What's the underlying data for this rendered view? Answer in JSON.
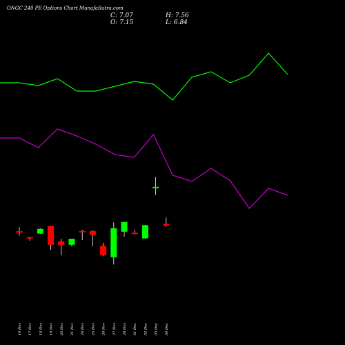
{
  "header": {
    "title": "ONGC 240 PE Options Chart MunafaSutra.com",
    "close": "C: 7.07",
    "high": "H: 7.56",
    "open": "O: 7.15",
    "low": "L: 6.84"
  },
  "colors": {
    "background": "#000000",
    "up": "#00ff00",
    "down": "#ff0000",
    "line_top": "#00ff00",
    "line_bottom": "#cc00cc",
    "text": "#ffffff"
  },
  "chart_data": {
    "type": "candlestick",
    "grid": false,
    "candles": [
      {
        "date": "14 Nov",
        "dir": "down",
        "open": 82.5,
        "close": 81.3,
        "high": 85.4,
        "low": 79.3
      },
      {
        "date": "17 Nov",
        "dir": "down",
        "open": 78.1,
        "close": 77.9,
        "high": 78.5,
        "low": 75.6
      },
      {
        "date": "18 Nov",
        "dir": "up",
        "open": 80.7,
        "close": 84.1,
        "high": 84.5,
        "low": 80.5
      },
      {
        "date": "19 Nov",
        "dir": "down",
        "open": 86.3,
        "close": 72.6,
        "high": 86.3,
        "low": 68.9
      },
      {
        "date": "20 Nov",
        "dir": "down",
        "open": 75.2,
        "close": 72.4,
        "high": 77.0,
        "low": 64.9
      },
      {
        "date": "21 Nov",
        "dir": "up",
        "open": 72.6,
        "close": 77.0,
        "high": 77.0,
        "low": 71.4
      },
      {
        "date": "24 Nov",
        "dir": "down",
        "open": 82.6,
        "close": 81.9,
        "high": 83.5,
        "low": 76.0
      },
      {
        "date": "25 Nov",
        "dir": "down",
        "open": 82.6,
        "close": 79.7,
        "high": 83.3,
        "low": 71.4
      },
      {
        "date": "26 Nov",
        "dir": "down",
        "open": 71.9,
        "close": 65.2,
        "high": 74.1,
        "low": 64.3
      },
      {
        "date": "27 Nov",
        "dir": "up",
        "open": 63.6,
        "close": 84.6,
        "high": 88.9,
        "low": 58.3
      },
      {
        "date": "28 Nov",
        "dir": "up",
        "open": 82.1,
        "close": 89.1,
        "high": 89.1,
        "low": 78.5
      },
      {
        "date": "01 Dec",
        "dir": "down",
        "open": 81.3,
        "close": 80.7,
        "high": 83.3,
        "low": 80.4
      },
      {
        "date": "02 Dec",
        "dir": "up",
        "open": 77.3,
        "close": 86.8,
        "high": 87.1,
        "low": 77.0
      },
      {
        "date": "03 Dec",
        "dir": "up",
        "open": 113.6,
        "close": 114.6,
        "high": 121.7,
        "low": 108.7
      },
      {
        "date": "04 Dec",
        "dir": "down",
        "open": 87.8,
        "close": 86.5,
        "high": 92.4,
        "low": 85.6
      }
    ],
    "overlay_lines": [
      {
        "name": "",
        "color": "#00ff00",
        "values": [
          380,
          380,
          376,
          386,
          368,
          368,
          375,
          382,
          378,
          355,
          388,
          396,
          380,
          391,
          423,
          392
        ]
      },
      {
        "name": "",
        "color": "#cc00cc",
        "values": [
          300,
          300,
          286,
          313,
          303,
          291,
          276,
          272,
          305,
          246,
          237,
          256,
          238,
          198,
          227,
          217
        ]
      }
    ]
  }
}
